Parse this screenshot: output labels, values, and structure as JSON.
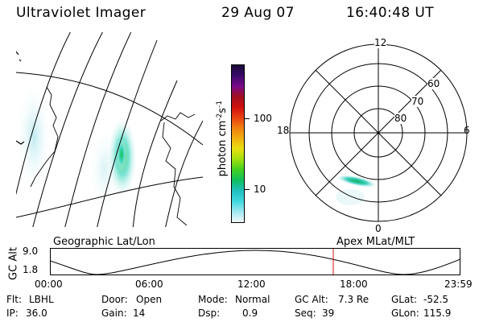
{
  "header": {
    "instrument": "Ultraviolet Imager",
    "date": "29 Aug 07",
    "time": "16:40:48 UT"
  },
  "colorbar": {
    "label_text": "photon cm",
    "label_exp1": "-2",
    "label_mid": "s",
    "label_exp2": "-1",
    "ticks": [
      "100",
      "10"
    ],
    "colors_top_to_bottom": [
      "#1a0a3a",
      "#3a0a6a",
      "#7a0a8a",
      "#a01020",
      "#d01010",
      "#e84010",
      "#f08010",
      "#f0b010",
      "#e8e010",
      "#a0e010",
      "#40d020",
      "#10c060",
      "#20c0c0",
      "#40d8e0",
      "#a0e8f0",
      "#f4f8fc"
    ]
  },
  "polar_plot": {
    "mlt_labels": {
      "top": "12",
      "left": "18",
      "right": "6",
      "bottom": "0"
    },
    "lat_labels": [
      "60",
      "70",
      "80"
    ]
  },
  "timeline": {
    "axis_label": "GC Alt",
    "y_ticks": [
      "9.0",
      "1.8"
    ],
    "left_caption": "Geographic Lat/Lon",
    "right_caption": "Apex MLat/MLT",
    "x_ticks": [
      "00:00",
      "06:00",
      "12:00",
      "18:00",
      "23:59"
    ],
    "current_marker_color": "#d01010"
  },
  "footer": {
    "row1": [
      {
        "label": "Flt:",
        "value": "LBHL"
      },
      {
        "label": "Door:",
        "value": "Open"
      },
      {
        "label": "Mode:",
        "value": "Normal"
      },
      {
        "label": "GC Alt:",
        "value": "7.3 Re"
      },
      {
        "label": "GLat:",
        "value": "-52.5"
      }
    ],
    "row2": [
      {
        "label": "IP:",
        "value": "36.0"
      },
      {
        "label": "Gain:",
        "value": "14"
      },
      {
        "label": "Dsp:",
        "value": "0.9"
      },
      {
        "label": "Seq:",
        "value": "39"
      },
      {
        "label": "GLon:",
        "value": "115.9"
      }
    ]
  }
}
